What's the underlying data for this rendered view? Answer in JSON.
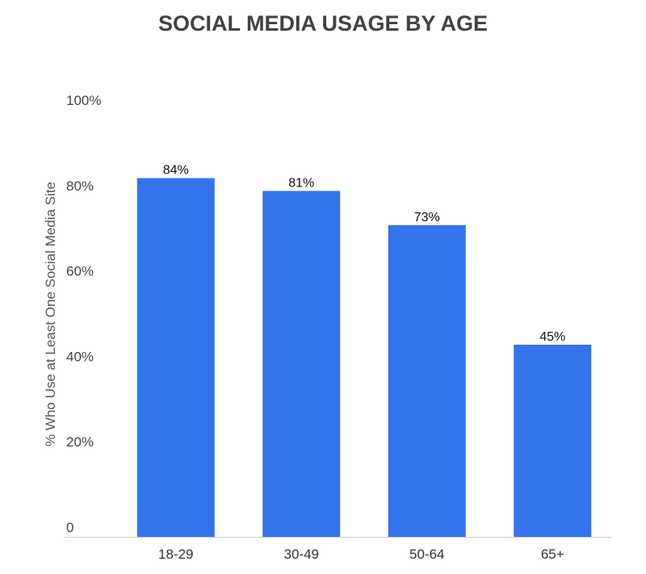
{
  "chart_data": {
    "type": "bar",
    "title": "SOCIAL MEDIA USAGE BY AGE",
    "ylabel": "% Who Use at Least One Social Media Site",
    "categories": [
      "18-29",
      "30-49",
      "50-64",
      "65+"
    ],
    "values": [
      84,
      81,
      73,
      45
    ],
    "data_labels": [
      "84%",
      "81%",
      "73%",
      "45%"
    ],
    "ylim": [
      0,
      100
    ],
    "yticks": [
      0,
      20,
      40,
      60,
      80,
      100
    ],
    "ytick_labels": [
      "0",
      "20%",
      "40%",
      "60%",
      "80%",
      "100%"
    ],
    "grid": false,
    "bar_color": "#3374eb",
    "axis_color": "#cccccc"
  }
}
